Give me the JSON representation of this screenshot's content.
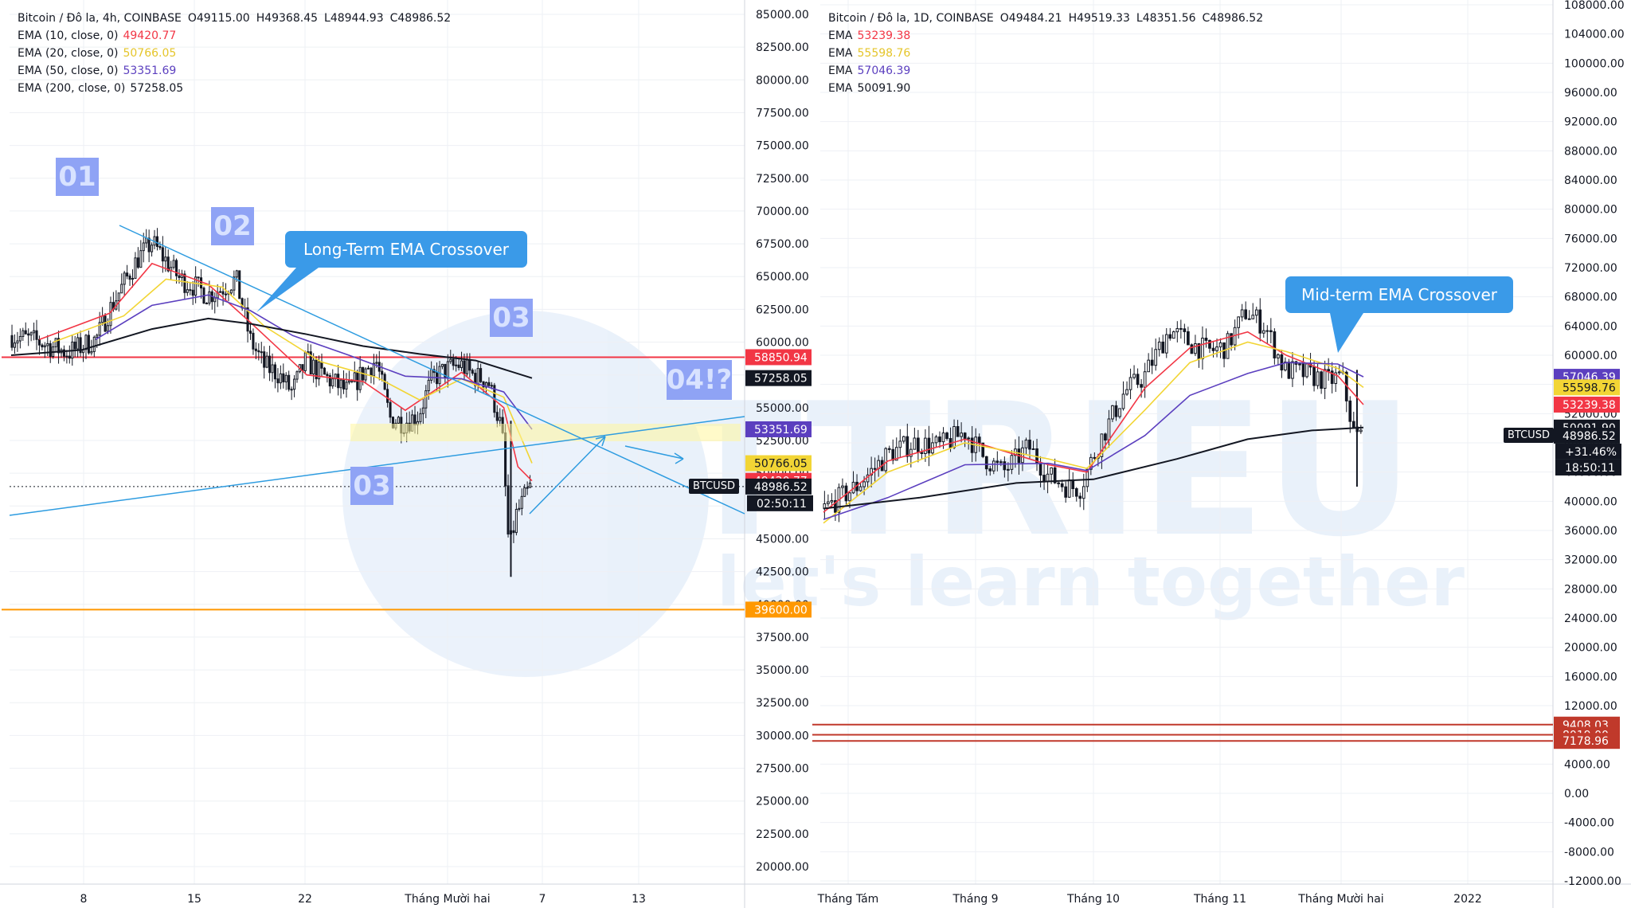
{
  "left_chart": {
    "title_parts": [
      "Bitcoin / Đô la, 4h, COINBASE",
      "O49115.00",
      "H49368.45",
      "L48944.93",
      "C48986.52"
    ],
    "ema_legend": [
      {
        "label": "EMA (10, close, 0)",
        "value": "49420.77",
        "color": "#f23645"
      },
      {
        "label": "EMA (20, close, 0)",
        "value": "50766.05",
        "color": "#f2d535"
      },
      {
        "label": "EMA (50, close, 0)",
        "value": "53351.69",
        "color": "#5b3fbf"
      },
      {
        "label": "EMA (200, close, 0)",
        "value": "57258.05",
        "color": "#131722"
      }
    ],
    "annotations": {
      "label_01": "01",
      "label_02": "02",
      "label_03_top": "03",
      "label_03_bottom": "03",
      "label_04": "04!?",
      "callout": "Long-Term EMA Crossover"
    },
    "symbol_tag": "BTCUSD"
  },
  "right_chart": {
    "title_parts": [
      "Bitcoin / Đô la, 1D, COINBASE",
      "O49484.21",
      "H49519.33",
      "L48351.56",
      "C48986.52"
    ],
    "ema_legend": [
      {
        "label": "EMA",
        "value": "53239.38",
        "color": "#f23645"
      },
      {
        "label": "EMA",
        "value": "55598.76",
        "color": "#f2d535"
      },
      {
        "label": "EMA",
        "value": "57046.39",
        "color": "#5b3fbf"
      },
      {
        "label": "EMA",
        "value": "50091.90",
        "color": "#131722"
      }
    ],
    "annotations": {
      "callout": "Mid-term EMA Crossover"
    },
    "symbol_tag": "BTCUSD"
  },
  "watermark": {
    "brand": "TTRIEU",
    "tagline": "let's learn together"
  },
  "chart_data": [
    {
      "type": "candlestick",
      "title": "Bitcoin / Đô la, 4h, COINBASE",
      "ohlc": {
        "open": 49115.0,
        "high": 49368.45,
        "low": 48944.93,
        "close": 48986.52
      },
      "ylim": [
        20000,
        85000
      ],
      "y_ticks": [
        "85000.00",
        "82500.00",
        "80000.00",
        "77500.00",
        "75000.00",
        "72500.00",
        "70000.00",
        "67500.00",
        "65000.00",
        "62500.00",
        "60000.00",
        "57500.00",
        "55000.00",
        "52500.00",
        "50000.00",
        "47500.00",
        "45000.00",
        "42500.00",
        "40000.00",
        "37500.00",
        "35000.00",
        "32500.00",
        "30000.00",
        "27500.00",
        "25000.00",
        "22500.00",
        "20000.00"
      ],
      "x_ticks": [
        "8",
        "15",
        "22",
        "Tháng Mười hai",
        "7",
        "13"
      ],
      "close_path": [
        {
          "x": 0,
          "y": 60500
        },
        {
          "x": 2,
          "y": 60000
        },
        {
          "x": 4,
          "y": 59200
        },
        {
          "x": 6,
          "y": 60200
        },
        {
          "x": 7,
          "y": 62500
        },
        {
          "x": 8,
          "y": 64500
        },
        {
          "x": 9,
          "y": 66400
        },
        {
          "x": 10,
          "y": 67600
        },
        {
          "x": 11,
          "y": 66200
        },
        {
          "x": 12,
          "y": 64800
        },
        {
          "x": 13,
          "y": 64300
        },
        {
          "x": 14,
          "y": 63600
        },
        {
          "x": 15,
          "y": 64100
        },
        {
          "x": 16,
          "y": 64800
        },
        {
          "x": 17,
          "y": 60200
        },
        {
          "x": 18,
          "y": 58200
        },
        {
          "x": 19,
          "y": 57600
        },
        {
          "x": 20,
          "y": 56200
        },
        {
          "x": 21,
          "y": 58600
        },
        {
          "x": 22,
          "y": 57600
        },
        {
          "x": 23,
          "y": 56900
        },
        {
          "x": 24,
          "y": 56200
        },
        {
          "x": 25,
          "y": 57600
        },
        {
          "x": 26,
          "y": 58600
        },
        {
          "x": 27,
          "y": 54200
        },
        {
          "x": 28,
          "y": 53900
        },
        {
          "x": 29,
          "y": 54400
        },
        {
          "x": 30,
          "y": 57200
        },
        {
          "x": 31,
          "y": 57900
        },
        {
          "x": 32,
          "y": 58300
        },
        {
          "x": 33,
          "y": 57400
        },
        {
          "x": 34,
          "y": 57100
        },
        {
          "x": 35,
          "y": 53200
        },
        {
          "x": 35.5,
          "y": 44000
        },
        {
          "x": 36,
          "y": 46800
        },
        {
          "x": 37,
          "y": 48900
        }
      ],
      "ema": [
        {
          "name": "EMA (10, close, 0)",
          "color": "#f23645",
          "values": [
            {
              "x": 2,
              "y": 60200
            },
            {
              "x": 7,
              "y": 62200
            },
            {
              "x": 10,
              "y": 66000
            },
            {
              "x": 14,
              "y": 64400
            },
            {
              "x": 17,
              "y": 61500
            },
            {
              "x": 21,
              "y": 57500
            },
            {
              "x": 25,
              "y": 57000
            },
            {
              "x": 28,
              "y": 54800
            },
            {
              "x": 32,
              "y": 57700
            },
            {
              "x": 35,
              "y": 55000
            },
            {
              "x": 36,
              "y": 50500
            },
            {
              "x": 37,
              "y": 49420
            }
          ]
        },
        {
          "name": "EMA (20, close, 0)",
          "color": "#f2d535",
          "values": [
            {
              "x": 3,
              "y": 60000
            },
            {
              "x": 8,
              "y": 62000
            },
            {
              "x": 11,
              "y": 64800
            },
            {
              "x": 15,
              "y": 64200
            },
            {
              "x": 18,
              "y": 61200
            },
            {
              "x": 22,
              "y": 58500
            },
            {
              "x": 26,
              "y": 57300
            },
            {
              "x": 29,
              "y": 55600
            },
            {
              "x": 32,
              "y": 57200
            },
            {
              "x": 35,
              "y": 55800
            },
            {
              "x": 37,
              "y": 50766
            }
          ]
        },
        {
          "name": "EMA (50, close, 0)",
          "color": "#5b3fbf",
          "values": [
            {
              "x": 6,
              "y": 60200
            },
            {
              "x": 10,
              "y": 62800
            },
            {
              "x": 14,
              "y": 63600
            },
            {
              "x": 17,
              "y": 62400
            },
            {
              "x": 20,
              "y": 60500
            },
            {
              "x": 24,
              "y": 59000
            },
            {
              "x": 28,
              "y": 57400
            },
            {
              "x": 32,
              "y": 57200
            },
            {
              "x": 35,
              "y": 56200
            },
            {
              "x": 37,
              "y": 53351
            }
          ]
        },
        {
          "name": "EMA (200, close, 0)",
          "color": "#131722",
          "values": [
            {
              "x": 0,
              "y": 59000
            },
            {
              "x": 5,
              "y": 59400
            },
            {
              "x": 10,
              "y": 61000
            },
            {
              "x": 14,
              "y": 61800
            },
            {
              "x": 17,
              "y": 61400
            },
            {
              "x": 21,
              "y": 60600
            },
            {
              "x": 25,
              "y": 59700
            },
            {
              "x": 29,
              "y": 59100
            },
            {
              "x": 33,
              "y": 58600
            },
            {
              "x": 37,
              "y": 57258
            }
          ]
        }
      ],
      "levels": [
        {
          "label": "58850.94",
          "value": 58850.94,
          "color": "#f23645"
        },
        {
          "label": "39600.00",
          "value": 39600,
          "color": "#ff9800"
        }
      ],
      "price_tags": [
        {
          "label": "57258.05",
          "value": 57258.05,
          "color": "#131722"
        },
        {
          "label": "53351.69",
          "value": 53351.69,
          "color": "#5b3fbf"
        },
        {
          "label": "50766.05",
          "value": 50766.05,
          "color": "#f2d535"
        },
        {
          "label": "49420.77",
          "value": 49420.77,
          "color": "#f23645"
        },
        {
          "label": "48986.52",
          "value": 48986.52,
          "color": "#131722"
        }
      ],
      "countdown": "02:50:11"
    },
    {
      "type": "candlestick",
      "title": "Bitcoin / Đô la, 1D, COINBASE",
      "ohlc": {
        "open": 49484.21,
        "high": 49519.33,
        "low": 48351.56,
        "close": 48986.52
      },
      "ylim": [
        -12000,
        108000
      ],
      "y_ticks": [
        "108000.00",
        "104000.00",
        "100000.00",
        "96000.00",
        "92000.00",
        "88000.00",
        "84000.00",
        "80000.00",
        "76000.00",
        "72000.00",
        "68000.00",
        "64000.00",
        "60000.00",
        "56000.00",
        "52000.00",
        "48000.00",
        "44000.00",
        "40000.00",
        "36000.00",
        "32000.00",
        "28000.00",
        "24000.00",
        "20000.00",
        "16000.00",
        "12000.00",
        "8000.00",
        "4000.00",
        "0.00",
        "-4000.00",
        "-8000.00",
        "-12000.00"
      ],
      "x_ticks": [
        "Tháng Tám",
        "Tháng 9",
        "Tháng 10",
        "Tháng 11",
        "Tháng Mười hai",
        "2022"
      ],
      "close_path": [
        {
          "x": 0,
          "y": 39000
        },
        {
          "x": 5,
          "y": 42000
        },
        {
          "x": 10,
          "y": 46500
        },
        {
          "x": 14,
          "y": 48000
        },
        {
          "x": 18,
          "y": 47500
        },
        {
          "x": 22,
          "y": 49500
        },
        {
          "x": 25,
          "y": 46000
        },
        {
          "x": 28,
          "y": 44000
        },
        {
          "x": 32,
          "y": 47500
        },
        {
          "x": 35,
          "y": 43500
        },
        {
          "x": 38,
          "y": 42000
        },
        {
          "x": 40,
          "y": 41800
        },
        {
          "x": 43,
          "y": 48000
        },
        {
          "x": 47,
          "y": 55000
        },
        {
          "x": 50,
          "y": 57000
        },
        {
          "x": 54,
          "y": 63500
        },
        {
          "x": 57,
          "y": 61800
        },
        {
          "x": 60,
          "y": 60500
        },
        {
          "x": 63,
          "y": 61200
        },
        {
          "x": 66,
          "y": 66000
        },
        {
          "x": 69,
          "y": 64000
        },
        {
          "x": 72,
          "y": 58000
        },
        {
          "x": 75,
          "y": 57500
        },
        {
          "x": 79,
          "y": 56500
        },
        {
          "x": 81,
          "y": 57200
        },
        {
          "x": 83,
          "y": 49000
        },
        {
          "x": 84,
          "y": 49000
        }
      ],
      "ema": [
        {
          "name": "EMA",
          "color": "#f23645",
          "values": [
            {
              "x": 0,
              "y": 38500
            },
            {
              "x": 10,
              "y": 45500
            },
            {
              "x": 22,
              "y": 48500
            },
            {
              "x": 35,
              "y": 45000
            },
            {
              "x": 41,
              "y": 44000
            },
            {
              "x": 50,
              "y": 55500
            },
            {
              "x": 57,
              "y": 61000
            },
            {
              "x": 66,
              "y": 63200
            },
            {
              "x": 72,
              "y": 60000
            },
            {
              "x": 80,
              "y": 57200
            },
            {
              "x": 84,
              "y": 53239
            }
          ]
        },
        {
          "name": "EMA",
          "color": "#f2d535",
          "values": [
            {
              "x": 0,
              "y": 37000
            },
            {
              "x": 10,
              "y": 44000
            },
            {
              "x": 22,
              "y": 48000
            },
            {
              "x": 35,
              "y": 45800
            },
            {
              "x": 41,
              "y": 44500
            },
            {
              "x": 50,
              "y": 52500
            },
            {
              "x": 57,
              "y": 59000
            },
            {
              "x": 66,
              "y": 61800
            },
            {
              "x": 72,
              "y": 60500
            },
            {
              "x": 80,
              "y": 58200
            },
            {
              "x": 84,
              "y": 55598
            }
          ]
        },
        {
          "name": "EMA",
          "color": "#5b3fbf",
          "values": [
            {
              "x": 0,
              "y": 37500
            },
            {
              "x": 10,
              "y": 40500
            },
            {
              "x": 22,
              "y": 45000
            },
            {
              "x": 35,
              "y": 45200
            },
            {
              "x": 41,
              "y": 44200
            },
            {
              "x": 50,
              "y": 49000
            },
            {
              "x": 57,
              "y": 54500
            },
            {
              "x": 66,
              "y": 57500
            },
            {
              "x": 72,
              "y": 59000
            },
            {
              "x": 80,
              "y": 58800
            },
            {
              "x": 84,
              "y": 57046
            }
          ]
        },
        {
          "name": "EMA",
          "color": "#131722",
          "values": [
            {
              "x": 0,
              "y": 39000
            },
            {
              "x": 15,
              "y": 40500
            },
            {
              "x": 30,
              "y": 42500
            },
            {
              "x": 42,
              "y": 43000
            },
            {
              "x": 55,
              "y": 45800
            },
            {
              "x": 66,
              "y": 48500
            },
            {
              "x": 76,
              "y": 49700
            },
            {
              "x": 84,
              "y": 50091
            }
          ]
        }
      ],
      "levels": [
        {
          "label": "9408.03",
          "value": 9408.03,
          "color": "#c0392b"
        },
        {
          "label": "8019.00",
          "value": 8019.0,
          "color": "#c0392b"
        },
        {
          "label": "7178.96",
          "value": 7178.96,
          "color": "#c0392b"
        }
      ],
      "price_tags": [
        {
          "label": "57046.39",
          "value": 57046.39,
          "color": "#5b3fbf"
        },
        {
          "label": "55598.76",
          "value": 55598.76,
          "color": "#f2d535"
        },
        {
          "label": "53239.38",
          "value": 53239.38,
          "color": "#f23645"
        },
        {
          "label": "50091.90",
          "value": 50091.9,
          "color": "#131722"
        },
        {
          "label": "48986.52",
          "value": 48986.52,
          "color": "#131722"
        }
      ],
      "change": "+31.46%",
      "countdown": "18:50:11"
    }
  ]
}
